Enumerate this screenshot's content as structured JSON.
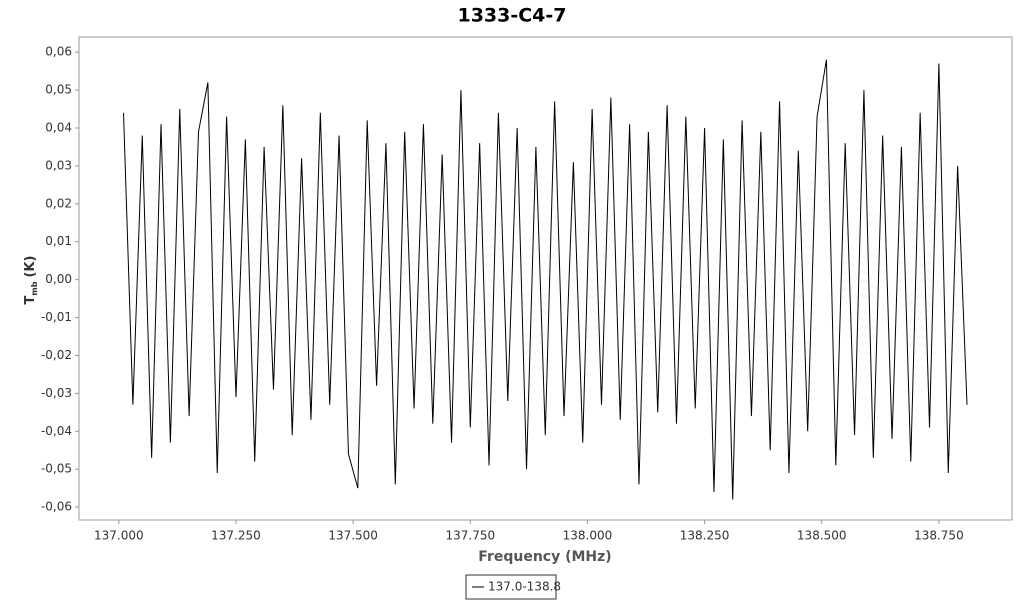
{
  "chart_data": {
    "type": "line",
    "title": "1333-C4-7",
    "xlabel": "Frequency (MHz)",
    "ylabel": "T",
    "ylabel_sub": "mb",
    "ylabel_unit": "(K)",
    "x": [
      137.01,
      137.03,
      137.05,
      137.07,
      137.09,
      137.11,
      137.13,
      137.15,
      137.17,
      137.19,
      137.21,
      137.23,
      137.25,
      137.27,
      137.29,
      137.31,
      137.33,
      137.35,
      137.37,
      137.39,
      137.41,
      137.43,
      137.45,
      137.47,
      137.49,
      137.51,
      137.53,
      137.55,
      137.57,
      137.59,
      137.61,
      137.63,
      137.65,
      137.67,
      137.69,
      137.71,
      137.73,
      137.75,
      137.77,
      137.79,
      137.81,
      137.83,
      137.85,
      137.87,
      137.89,
      137.91,
      137.93,
      137.95,
      137.97,
      137.99,
      138.01,
      138.03,
      138.05,
      138.07,
      138.09,
      138.11,
      138.13,
      138.15,
      138.17,
      138.19,
      138.21,
      138.23,
      138.25,
      138.27,
      138.29,
      138.31,
      138.33,
      138.35,
      138.37,
      138.39,
      138.41,
      138.43,
      138.45,
      138.47,
      138.49,
      138.51,
      138.53,
      138.55,
      138.57,
      138.59,
      138.61,
      138.63,
      138.65,
      138.67,
      138.69,
      138.71,
      138.73,
      138.75,
      138.77,
      138.79,
      138.81
    ],
    "series": [
      {
        "name": "137.0-138.8",
        "color": "#000000",
        "values": [
          0.044,
          -0.033,
          0.038,
          -0.047,
          0.041,
          -0.043,
          0.045,
          -0.036,
          0.039,
          0.052,
          -0.051,
          0.043,
          -0.031,
          0.037,
          -0.048,
          0.035,
          -0.029,
          0.046,
          -0.041,
          0.032,
          -0.037,
          0.044,
          -0.033,
          0.038,
          -0.046,
          -0.055,
          0.042,
          -0.028,
          0.036,
          -0.054,
          0.039,
          -0.034,
          0.041,
          -0.038,
          0.033,
          -0.043,
          0.05,
          -0.039,
          0.036,
          -0.049,
          0.044,
          -0.032,
          0.04,
          -0.05,
          0.035,
          -0.041,
          0.047,
          -0.036,
          0.031,
          -0.043,
          0.045,
          -0.033,
          0.048,
          -0.037,
          0.041,
          -0.054,
          0.039,
          -0.035,
          0.046,
          -0.038,
          0.043,
          -0.034,
          0.04,
          -0.056,
          0.037,
          -0.058,
          0.042,
          -0.036,
          0.039,
          -0.045,
          0.047,
          -0.051,
          0.034,
          -0.04,
          0.043,
          0.058,
          -0.049,
          0.036,
          -0.041,
          0.05,
          -0.047,
          0.038,
          -0.042,
          0.035,
          -0.048,
          0.044,
          -0.039,
          0.057,
          -0.051,
          0.03,
          -0.033
        ]
      }
    ],
    "xlim": [
      136.915,
      138.906
    ],
    "ylim": [
      -0.0634,
      0.064
    ],
    "xticks": [
      {
        "value": 137.0,
        "label": "137.000"
      },
      {
        "value": 137.25,
        "label": "137.250"
      },
      {
        "value": 137.5,
        "label": "137.500"
      },
      {
        "value": 137.75,
        "label": "137.750"
      },
      {
        "value": 138.0,
        "label": "138.000"
      },
      {
        "value": 138.25,
        "label": "138.250"
      },
      {
        "value": 138.5,
        "label": "138.500"
      },
      {
        "value": 138.75,
        "label": "138.750"
      }
    ],
    "yticks": [
      {
        "value": -0.06,
        "label": "-0,06"
      },
      {
        "value": -0.05,
        "label": "-0,05"
      },
      {
        "value": -0.04,
        "label": "-0,04"
      },
      {
        "value": -0.03,
        "label": "-0,03"
      },
      {
        "value": -0.02,
        "label": "-0,02"
      },
      {
        "value": -0.01,
        "label": "-0,01"
      },
      {
        "value": 0,
        "label": "0,00"
      },
      {
        "value": 0.01,
        "label": "0,01"
      },
      {
        "value": 0.02,
        "label": "0,02"
      },
      {
        "value": 0.03,
        "label": "0,03"
      },
      {
        "value": 0.04,
        "label": "0,04"
      },
      {
        "value": 0.05,
        "label": "0,05"
      },
      {
        "value": 0.06,
        "label": "0,06"
      }
    ],
    "grid": false,
    "legend": "bottom"
  }
}
